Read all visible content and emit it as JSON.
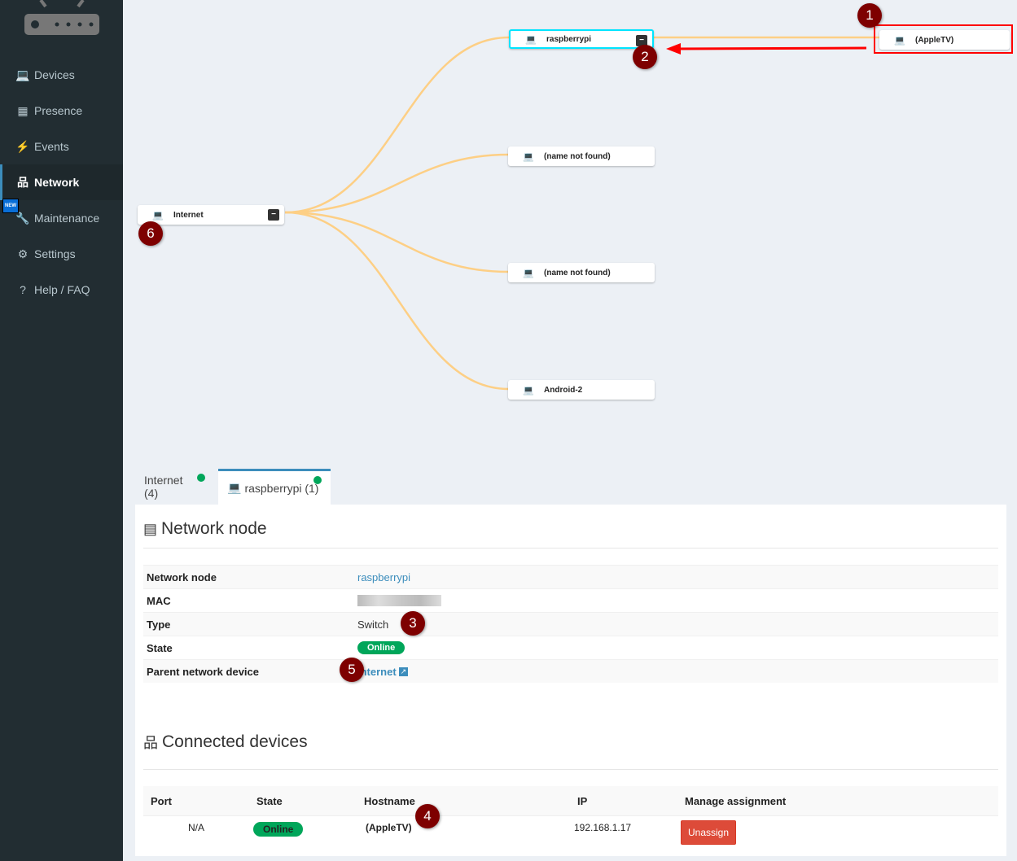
{
  "sidebar": {
    "items": [
      {
        "label": "Devices",
        "icon": "laptop-icon"
      },
      {
        "label": "Presence",
        "icon": "calendar-icon"
      },
      {
        "label": "Events",
        "icon": "bolt-icon"
      },
      {
        "label": "Network",
        "icon": "sitemap-icon",
        "active": true
      },
      {
        "label": "Maintenance",
        "icon": "wrench-icon",
        "badge": "NEW"
      },
      {
        "label": "Settings",
        "icon": "gear-icon"
      },
      {
        "label": "Help / FAQ",
        "icon": "question-icon"
      }
    ]
  },
  "graph": {
    "root": "Internet",
    "children": [
      "raspberrypi",
      "(name not found)",
      "(name not found)",
      "Android-2"
    ],
    "grandchild": "(AppleTV)",
    "link_color": "#fdcf85",
    "selected_border": "#00e5ff"
  },
  "annotations": [
    "1",
    "2",
    "3",
    "4",
    "5",
    "6"
  ],
  "tabs": [
    {
      "label": "Internet (4)"
    },
    {
      "label": "raspberrypi (1)"
    }
  ],
  "node_section": {
    "title": "Network node",
    "rows": [
      {
        "key": "Network node",
        "value": "raspberrypi"
      },
      {
        "key": "MAC",
        "value": ""
      },
      {
        "key": "Type",
        "value": "Switch"
      },
      {
        "key": "State",
        "value": "Online"
      },
      {
        "key": "Parent network device",
        "value": "Internet"
      }
    ]
  },
  "connected": {
    "title": "Connected devices",
    "headers": [
      "Port",
      "State",
      "Hostname",
      "IP",
      "Manage assignment"
    ],
    "rows": [
      {
        "port": "N/A",
        "state": "Online",
        "hostname": "(AppleTV)",
        "ip": "192.168.1.17",
        "action": "Unassign"
      }
    ]
  }
}
